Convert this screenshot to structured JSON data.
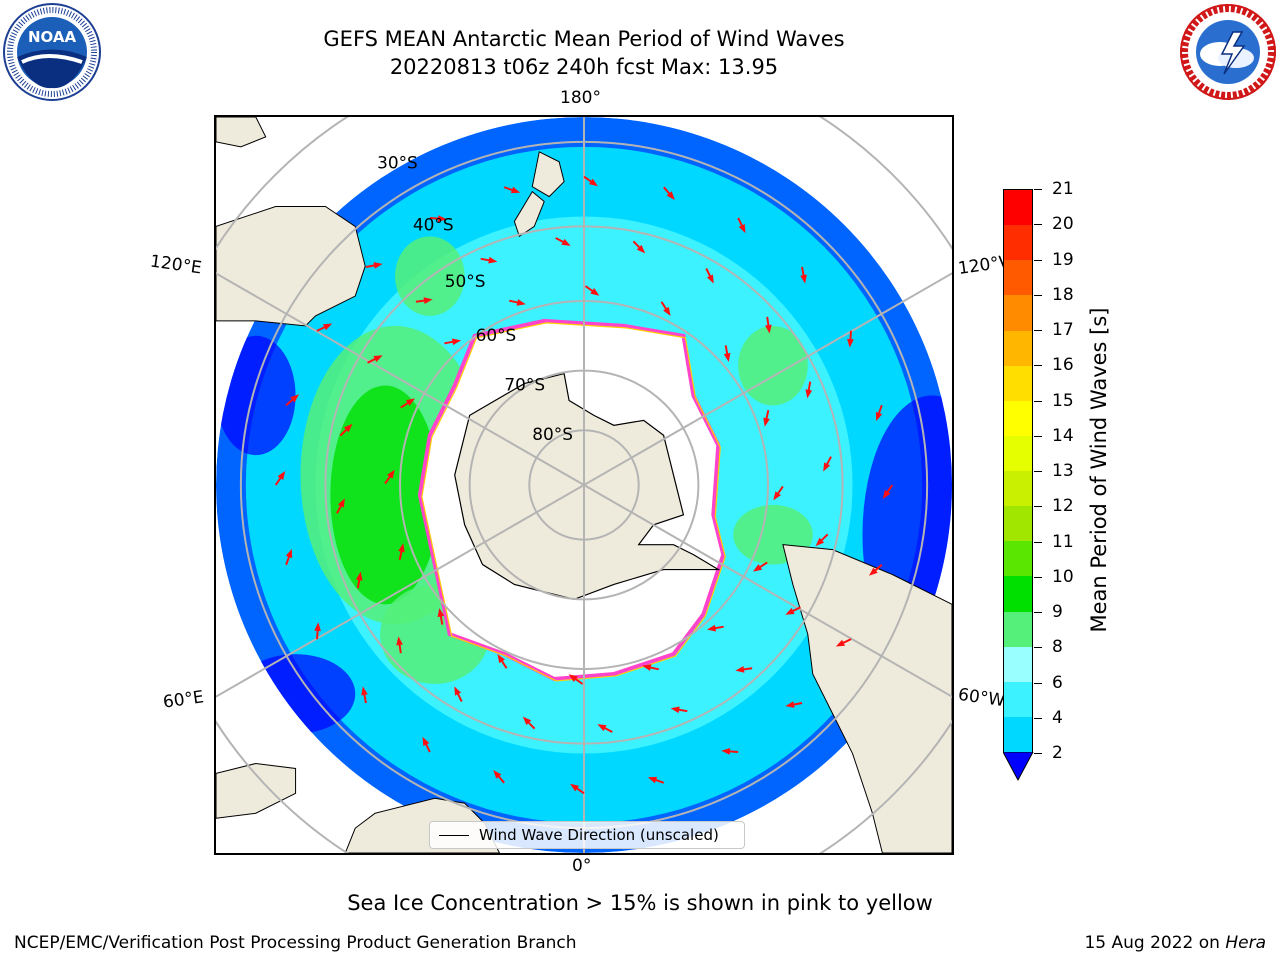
{
  "header": {
    "title_line1": "GEFS MEAN Antarctic Mean Period of Wind Waves",
    "title_line2": "20220813 t06z 240h fcst   Max: 13.95"
  },
  "logos": {
    "left": {
      "name": "noaa-logo",
      "text": "NOAA",
      "ring_text": "NATIONAL OCEANIC AND ATMOSPHERIC ADMINISTRATION · U.S. DEPARTMENT OF COMMERCE"
    },
    "right": {
      "name": "nws-logo",
      "ring_text": "NATIONAL WEATHER SERVICE"
    }
  },
  "map": {
    "projection": "south-polar-stereographic",
    "longitude_labels": {
      "top": "180°",
      "bottom": "0°",
      "left_upper": "120°E",
      "left_lower": "60°E",
      "right_upper": "120°W",
      "right_lower": "60°W"
    },
    "latitude_labels": [
      "30°S",
      "40°S",
      "50°S",
      "60°S",
      "70°S",
      "80°S"
    ],
    "legend_label": "Wind Wave Direction (unscaled)",
    "colors": {
      "land": "#efebdc",
      "ice": "#ffffff",
      "ice_edge": "#ff44cc",
      "arrow": "#ff1010",
      "grid": "#b4b4b4"
    }
  },
  "colorbar": {
    "label": "Mean Period of Wind Waves [s]",
    "ticks": [
      "2",
      "4",
      "6",
      "8",
      "9",
      "10",
      "11",
      "12",
      "13",
      "14",
      "15",
      "16",
      "17",
      "18",
      "19",
      "20",
      "21"
    ],
    "colors": [
      "#0064ff",
      "#00d8ff",
      "#3cf2ff",
      "#9affff",
      "#55f079",
      "#00e000",
      "#5ae600",
      "#a0e600",
      "#c8f000",
      "#e6ff00",
      "#ffff00",
      "#ffde00",
      "#ffb600",
      "#ff8c00",
      "#ff5a00",
      "#ff2d00",
      "#ff0000"
    ],
    "extend_min_color": "#0000ff"
  },
  "footnote": "Sea Ice Concentration > 15% is shown in pink to yellow",
  "footer": {
    "left": "NCEP/EMC/Verification Post Processing Product Generation Branch",
    "right_date": "15 Aug 2022 on ",
    "right_machine": "Hera"
  }
}
